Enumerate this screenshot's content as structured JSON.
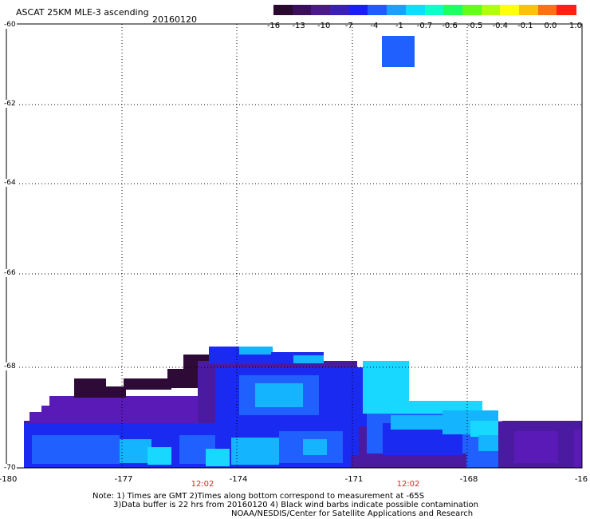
{
  "header": {
    "title": "ASCAT 25KM MLE-3 ascending",
    "date": "20160120"
  },
  "colorbar": {
    "colors": [
      "#2a0a2e",
      "#3b0f5a",
      "#4a1a8a",
      "#3a1fb8",
      "#1a1ff2",
      "#1f5cff",
      "#1aa0ff",
      "#10dcff",
      "#10ffc8",
      "#20ff60",
      "#60ff20",
      "#b0ff10",
      "#ffff10",
      "#ffc010",
      "#ff7010",
      "#ff2010"
    ],
    "tick_labels": [
      "-16",
      "-13",
      "-10",
      "-7",
      "-4",
      "-1",
      "-0.7",
      "-0.6",
      "-0.5",
      "-0.4",
      "-0.1",
      "0.0",
      "1.0"
    ]
  },
  "axes": {
    "y_labels": [
      "-60",
      "-62",
      "-64",
      "-66",
      "-68",
      "-70"
    ],
    "x_labels": [
      "-180",
      "-177",
      "-174",
      "-171",
      "-168",
      "-16"
    ],
    "x_range": [
      -180,
      -165
    ],
    "y_range": [
      -70,
      -60
    ],
    "grid": "dotted"
  },
  "time_labels": [
    "12:02",
    "12:02"
  ],
  "notes": {
    "line1": "Note: 1) Times are GMT 2)Times along bottom correspond to measurement at -65S",
    "line2": "3)Data buffer is 22 hrs from 20160120 4) Black wind barbs indicate possible contamination",
    "credit": "NOAA/NESDIS/Center for Satellite Applications and Research"
  },
  "colors": {
    "land_dark": "#2e0a36",
    "purple": "#4a1aa0",
    "violet": "#5a1ab8",
    "blue": "#1a2af0",
    "medium_blue": "#1f60ff",
    "light_blue": "#14b4ff",
    "cyan": "#18d8ff",
    "time_label": "#d0281c"
  }
}
